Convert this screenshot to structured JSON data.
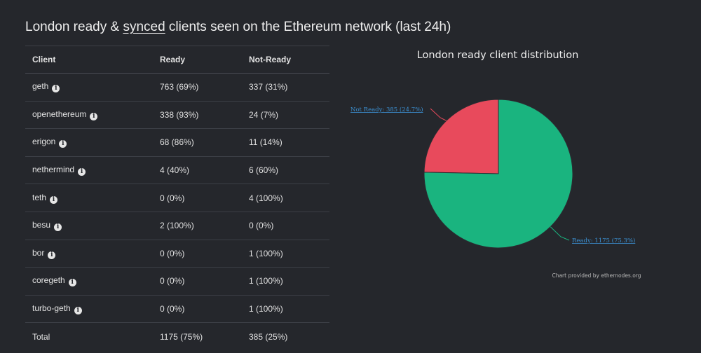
{
  "heading": {
    "before": "London ready & ",
    "link": "synced",
    "after": " clients seen on the Ethereum network (last 24h)"
  },
  "table": {
    "headers": {
      "client": "Client",
      "ready": "Ready",
      "not_ready": "Not-Ready"
    },
    "rows": [
      {
        "client": "geth",
        "ready": "763 (69%)",
        "not_ready": "337 (31%)"
      },
      {
        "client": "openethereum",
        "ready": "338 (93%)",
        "not_ready": "24 (7%)"
      },
      {
        "client": "erigon",
        "ready": "68 (86%)",
        "not_ready": "11 (14%)"
      },
      {
        "client": "nethermind",
        "ready": "4 (40%)",
        "not_ready": "6 (60%)"
      },
      {
        "client": "teth",
        "ready": "0 (0%)",
        "not_ready": "4 (100%)"
      },
      {
        "client": "besu",
        "ready": "2 (100%)",
        "not_ready": "0 (0%)"
      },
      {
        "client": "bor",
        "ready": "0 (0%)",
        "not_ready": "1 (100%)"
      },
      {
        "client": "coregeth",
        "ready": "0 (0%)",
        "not_ready": "1 (100%)"
      },
      {
        "client": "turbo-geth",
        "ready": "0 (0%)",
        "not_ready": "1 (100%)"
      }
    ],
    "total": {
      "label": "Total",
      "ready": "1175 (75%)",
      "not_ready": "385 (25%)"
    },
    "info_icon": "info-icon"
  },
  "chart_data": {
    "type": "pie",
    "title": "London ready client distribution",
    "slices": [
      {
        "name": "Not Ready",
        "value": 385,
        "label": "Not Ready: 385 (24.7%)",
        "color": "#e84a5c"
      },
      {
        "name": "Ready",
        "value": 1175,
        "label": "Ready: 1175 (75.3%)",
        "color": "#1ab47f"
      }
    ],
    "credit": "Chart provided by ethernodes.org"
  },
  "colors": {
    "background": "#25272c",
    "label_link": "#3b8fd0"
  }
}
